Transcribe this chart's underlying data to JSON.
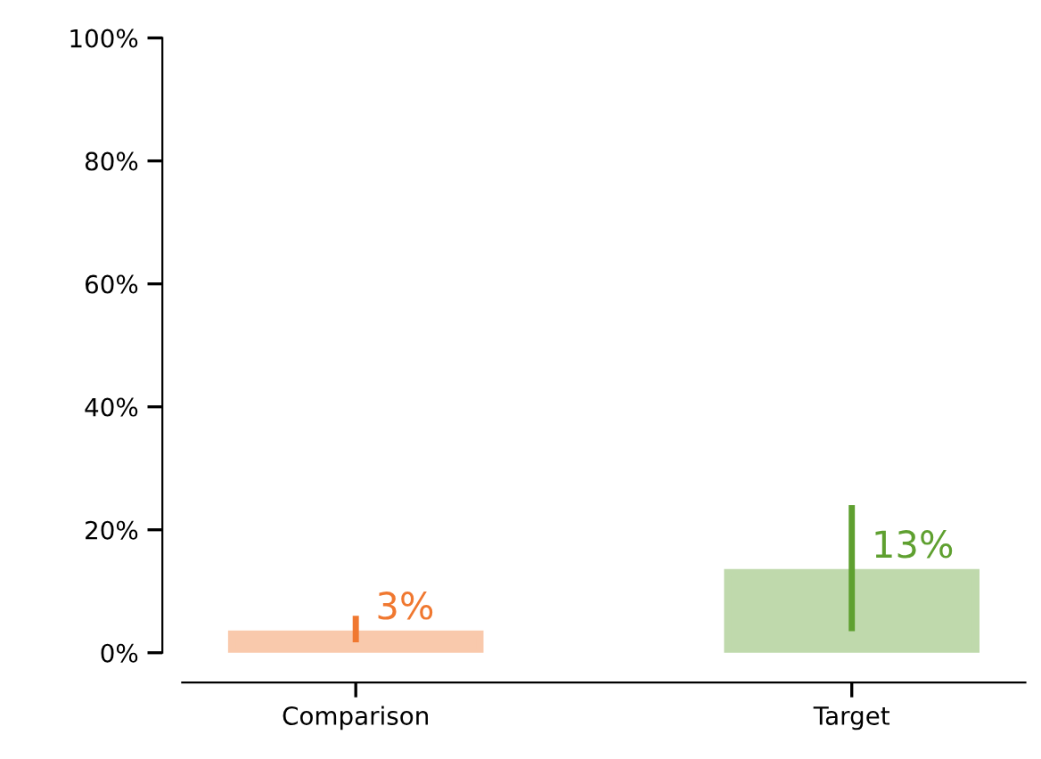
{
  "chart_data": {
    "type": "bar",
    "categories": [
      "Comparison",
      "Target"
    ],
    "values": [
      3,
      13
    ],
    "errors": [
      [
        1.7,
        6
      ],
      [
        3.5,
        24
      ]
    ],
    "colors": [
      "#f07830",
      "#5fa030"
    ],
    "value_labels": [
      "3%",
      "13%"
    ],
    "ylim": [
      0,
      100
    ],
    "yticks": [
      {
        "value": 0,
        "label": "0%"
      },
      {
        "value": 20,
        "label": "20%"
      },
      {
        "value": 40,
        "label": "40%"
      },
      {
        "value": 60,
        "label": "60%"
      },
      {
        "value": 80,
        "label": "80%"
      },
      {
        "value": 100,
        "label": "100%"
      }
    ],
    "grid": false,
    "legend": false
  }
}
